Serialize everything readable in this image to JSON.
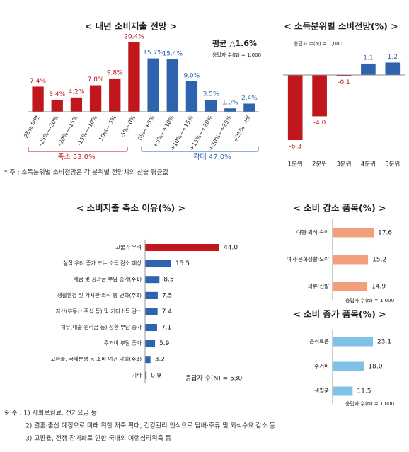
{
  "chart_data": [
    {
      "type": "bar",
      "title": "< 내년 소비지출 전망 >",
      "categories": [
        "-25% 미만",
        "-25%~-20%",
        "-20%~-15%",
        "-15%~-10%",
        "-10%~-5%",
        "-5%~0%",
        "0%~+5%",
        "+5%~+10%",
        "+10%~+15%",
        "+15%~+20%",
        "+20%~+25%",
        "+25% 이상"
      ],
      "values": [
        7.4,
        3.4,
        4.2,
        7.8,
        9.8,
        20.4,
        15.7,
        15.4,
        9.0,
        3.5,
        1.0,
        2.4
      ],
      "value_labels": [
        "7.4%",
        "3.4%",
        "4.2%",
        "7.8%",
        "9.8%",
        "20.4%",
        "15.7%",
        "15.4%",
        "9.0%",
        "3.5%",
        "1.0%",
        "2.4%"
      ],
      "colors": [
        "#c0161c",
        "#c0161c",
        "#c0161c",
        "#c0161c",
        "#c0161c",
        "#c0161c",
        "#2e64ad",
        "#2e64ad",
        "#2e64ad",
        "#2e64ad",
        "#2e64ad",
        "#2e64ad"
      ],
      "annotations": [
        "평균 △1.6%",
        "응답자 수(N) = 1,000",
        "축소 53.0%",
        "확대 47.0%"
      ]
    },
    {
      "type": "bar",
      "title": "< 소득분위별 소비전망(%) >",
      "categories": [
        "1분위",
        "2분위",
        "3분위",
        "4분위",
        "5분위"
      ],
      "values": [
        -6.3,
        -4.0,
        -0.1,
        1.1,
        1.2
      ],
      "value_labels": [
        "-6.3",
        "-4.0",
        "-0.1",
        "1.1",
        "1.2"
      ],
      "colors": [
        "#c0161c",
        "#c0161c",
        "#c0161c",
        "#2e64ad",
        "#2e64ad"
      ],
      "annotations": [
        "응답자 수(N) = 1,000"
      ]
    },
    {
      "type": "barh",
      "title": "< 소비지출 축소 이유(%) >",
      "categories": [
        "고물가 우려",
        "실직 우려 증가 또는 소득 감소 예상",
        "세금 및 공과금 부담 증가(주1)",
        "생활환경 및 가치관·의식 등 변화(주2)",
        "자산(부동산·주식 등) 및 기타소득 감소",
        "채무(대출 원리금 등) 상환 부담 증가",
        "주거비 부담 증가",
        "고환율, 국제분쟁 등 소비 여건 악화(주3)",
        "기타"
      ],
      "values": [
        44.0,
        15.5,
        8.5,
        7.5,
        7.4,
        7.1,
        5.9,
        3.2,
        0.9
      ],
      "value_labels": [
        "44.0",
        "15.5",
        "8.5",
        "7.5",
        "7.4",
        "7.1",
        "5.9",
        "3.2",
        "0.9"
      ],
      "colors": [
        "#c0161c",
        "#2e64ad",
        "#2e64ad",
        "#2e64ad",
        "#2e64ad",
        "#2e64ad",
        "#2e64ad",
        "#2e64ad",
        "#2e64ad"
      ],
      "annotations": [
        "응답자 수(N) = 530"
      ]
    },
    {
      "type": "barh",
      "title": "< 소비 감소 품목(%) >",
      "categories": [
        "여행·외식·숙박",
        "여가·문화생활·오락",
        "의류·신발"
      ],
      "values": [
        17.6,
        15.2,
        14.9
      ],
      "colors": [
        "#f2a07b",
        "#f2a07b",
        "#f2a07b"
      ],
      "annotations": [
        "응답자 수(N) = 1,000"
      ]
    },
    {
      "type": "barh",
      "title": "< 소비 증가 품목(%) >",
      "categories": [
        "음식료품",
        "주거비",
        "생필품"
      ],
      "values": [
        23.1,
        18.0,
        11.5
      ],
      "value_labels": [
        "23.1",
        "18.0",
        "11.5"
      ],
      "colors": [
        "#7ec3e6",
        "#7ec3e6",
        "#7ec3e6"
      ],
      "annotations": [
        "응답자 수(N) = 1,000"
      ]
    }
  ],
  "notes": {
    "income_note": "* 주 : 소득분위별 소비전망은 각 분위별 전망치의 산술 평균값",
    "footnotes": [
      "※ 주 : 1) 사회보험료, 전기요금 등",
      "2) 결혼·출산 예정으로 미래 위한 저축 확대, 건강관리 인식으로 담배·주류 및 외식수요 감소 등",
      "3) 고환율, 전쟁 장기화로 인한 국내외 여행심리위축 등"
    ]
  }
}
